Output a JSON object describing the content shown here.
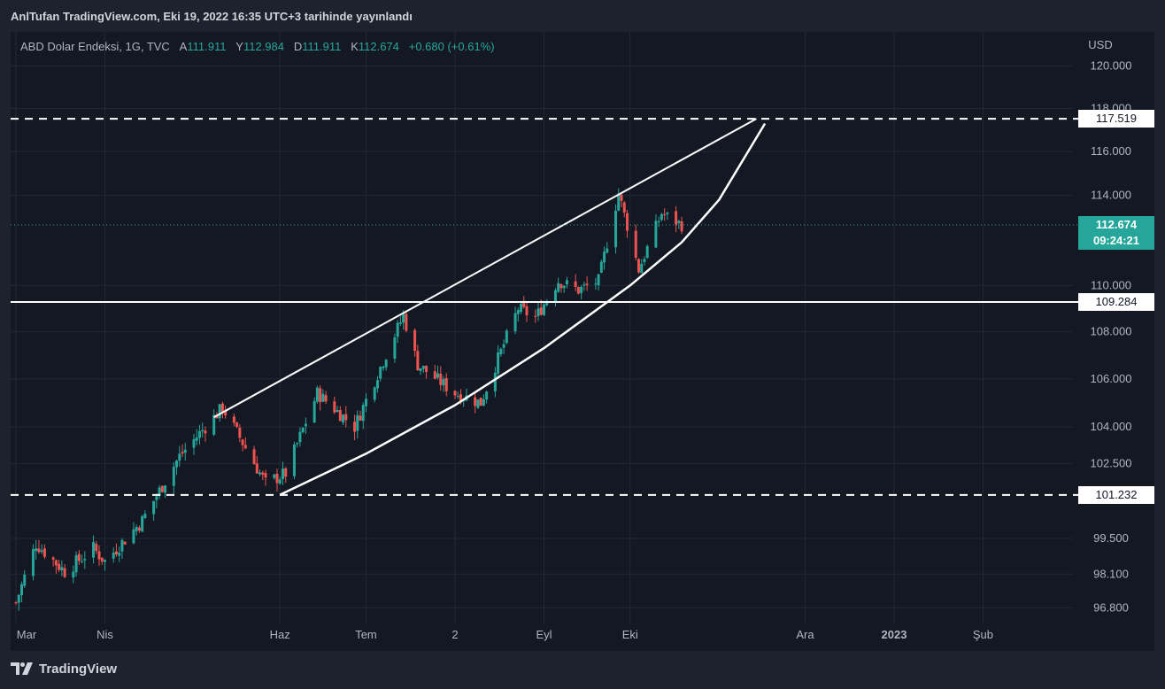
{
  "header": "AnlTufan TradingView.com, Eki 19, 2022 16:35 UTC+3 tarihinde yayınlandı",
  "legend": {
    "symbol": "ABD Dolar Endeksi, 1G, TVC",
    "open_label": "A",
    "open": "111.911",
    "high_label": "Y",
    "high": "112.984",
    "low_label": "D",
    "low": "111.911",
    "close_label": "K",
    "close": "112.674",
    "change": "+0.680 (+0.61%)"
  },
  "brand": "TradingView",
  "current": {
    "price": "112.674",
    "countdown": "09:24:21"
  },
  "levels": [
    {
      "value": "117.519",
      "style": "dashed"
    },
    {
      "value": "109.284",
      "style": "solid"
    },
    {
      "value": "101.232",
      "style": "dashed"
    }
  ],
  "chart_data": {
    "type": "candlestick",
    "currency": "USD",
    "y_scale": "log",
    "ylim": [
      96.3,
      121.3
    ],
    "y_ticks": [
      "120.000",
      "118.000",
      "116.000",
      "114.000",
      "110.000",
      "108.000",
      "106.000",
      "104.000",
      "102.500",
      "99.500",
      "98.100",
      "96.800"
    ],
    "x_ticks": [
      "Mar",
      "Nis",
      "Haz",
      "Tem",
      "2",
      "Eyl",
      "Eki",
      "Ara",
      "2023",
      "Şub"
    ],
    "x_axis_range": [
      "2022-03-01",
      "2023-02-28"
    ],
    "anchors": [
      [
        "2022-03-01",
        97.0
      ],
      [
        "2022-03-08",
        99.3
      ],
      [
        "2022-03-18",
        98.2
      ],
      [
        "2022-03-28",
        99.1
      ],
      [
        "2022-04-01",
        98.6
      ],
      [
        "2022-04-14",
        100.2
      ],
      [
        "2022-04-27",
        102.8
      ],
      [
        "2022-05-12",
        104.8
      ],
      [
        "2022-05-27",
        101.7
      ],
      [
        "2022-06-03",
        102.1
      ],
      [
        "2022-06-14",
        105.4
      ],
      [
        "2022-06-27",
        104.0
      ],
      [
        "2022-07-14",
        108.7
      ],
      [
        "2022-07-19",
        106.6
      ],
      [
        "2022-08-01",
        105.4
      ],
      [
        "2022-08-10",
        105.0
      ],
      [
        "2022-08-23",
        109.0
      ],
      [
        "2022-08-29",
        108.6
      ],
      [
        "2022-09-06",
        110.2
      ],
      [
        "2022-09-13",
        109.8
      ],
      [
        "2022-09-20",
        110.2
      ],
      [
        "2022-09-27",
        114.1
      ],
      [
        "2022-10-04",
        110.7
      ],
      [
        "2022-10-12",
        113.2
      ],
      [
        "2022-10-19",
        112.674
      ]
    ],
    "trendlines": [
      {
        "name": "upper-channel",
        "from": [
          "2022-05-09",
          104.4
        ],
        "to": [
          "2022-11-14",
          117.519
        ]
      },
      {
        "name": "support-curve",
        "points": [
          [
            "2022-06-01",
            101.232
          ],
          [
            "2022-07-01",
            102.9
          ],
          [
            "2022-08-01",
            104.9
          ],
          [
            "2022-09-01",
            107.3
          ],
          [
            "2022-10-01",
            110.0
          ],
          [
            "2022-10-19",
            111.9
          ],
          [
            "2022-11-01",
            113.8
          ],
          [
            "2022-11-17",
            117.3
          ]
        ]
      }
    ]
  }
}
